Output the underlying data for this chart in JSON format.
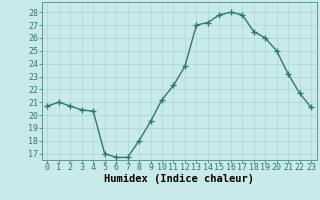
{
  "x": [
    0,
    1,
    2,
    3,
    4,
    5,
    6,
    7,
    8,
    9,
    10,
    11,
    12,
    13,
    14,
    15,
    16,
    17,
    18,
    19,
    20,
    21,
    22,
    23
  ],
  "y": [
    20.7,
    21.0,
    20.7,
    20.4,
    20.3,
    17.0,
    16.7,
    16.7,
    18.0,
    19.5,
    21.2,
    22.3,
    23.8,
    27.0,
    27.2,
    27.8,
    28.0,
    27.8,
    26.5,
    26.0,
    25.0,
    23.2,
    21.7,
    20.6
  ],
  "xlabel": "Humidex (Indice chaleur)",
  "ylabel_ticks": [
    17,
    18,
    19,
    20,
    21,
    22,
    23,
    24,
    25,
    26,
    27,
    28
  ],
  "ylim": [
    16.5,
    28.8
  ],
  "xlim": [
    -0.5,
    23.5
  ],
  "line_color": "#2a7a6e",
  "marker": "+",
  "marker_size": 4.0,
  "bg_color": "#c8eaea",
  "grid_color": "#aed4d2",
  "xlabel_fontsize": 7.5,
  "tick_fontsize": 6.0,
  "linewidth": 1.0
}
